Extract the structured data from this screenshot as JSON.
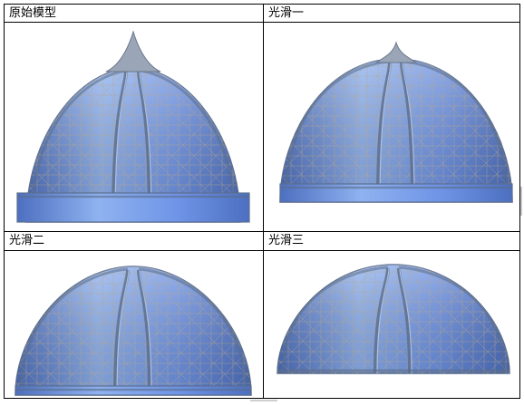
{
  "panels": [
    {
      "label": "原始模型",
      "model": "original"
    },
    {
      "label": "光滑一",
      "model": "smooth-1"
    },
    {
      "label": "光滑二",
      "model": "smooth-2"
    },
    {
      "label": "光滑三",
      "model": "smooth-3"
    }
  ],
  "colors": {
    "dome_light": "#8fb2f0",
    "dome_mid": "#6e93e6",
    "dome_dark": "#4d6fc0",
    "rib_shadow": "#5a6d8a",
    "mesh_line": "#b9a98a",
    "border": "#000000"
  }
}
